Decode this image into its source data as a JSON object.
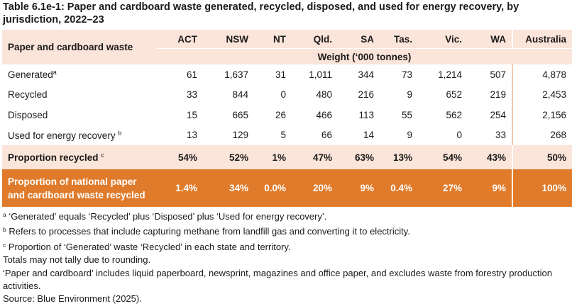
{
  "title": "Table 6.1e-1: Paper and cardboard waste generated, recycled, disposed, and used for energy recovery, by jurisdiction, 2022–23",
  "header": {
    "row_label": "Paper and cardboard waste",
    "columns": [
      "ACT",
      "NSW",
      "NT",
      "Qld.",
      "SA",
      "Tas.",
      "Vic.",
      "WA",
      "Australia"
    ],
    "units": "Weight (‘000 tonnes)"
  },
  "rows": [
    {
      "label": "Generated",
      "sup": "a",
      "values": [
        "61",
        "1,637",
        "31",
        "1,011",
        "344",
        "73",
        "1,214",
        "507",
        "4,878"
      ]
    },
    {
      "label": "Recycled",
      "sup": "",
      "values": [
        "33",
        "844",
        "0",
        "480",
        "216",
        "9",
        "652",
        "219",
        "2,453"
      ]
    },
    {
      "label": "Disposed",
      "sup": "",
      "values": [
        "15",
        "665",
        "26",
        "466",
        "113",
        "55",
        "562",
        "254",
        "2,156"
      ]
    },
    {
      "label": "Used for energy recovery",
      "sup": "b",
      "values": [
        "13",
        "129",
        "5",
        "66",
        "14",
        "9",
        "0",
        "33",
        "268"
      ]
    }
  ],
  "proportion_recycled": {
    "label": "Proportion recycled",
    "sup": "c",
    "values": [
      "54%",
      "52%",
      "1%",
      "47%",
      "63%",
      "13%",
      "54%",
      "43%",
      "50%"
    ]
  },
  "proportion_national": {
    "label": "Proportion of national paper and cardboard waste recycled",
    "values": [
      "1.4%",
      "34%",
      "0.0%",
      "20%",
      "9%",
      "0.4%",
      "27%",
      "9%",
      "100%"
    ]
  },
  "footnotes": [
    {
      "sup": "a",
      "text": "‘Generated’ equals ‘Recycled’ plus ‘Disposed’ plus ‘Used for energy recovery’."
    },
    {
      "sup": "b",
      "text": "Refers to processes that include capturing methane from landfill gas and converting it to electricity."
    },
    {
      "sup": "c",
      "text": "Proportion of ‘Generated’ waste ‘Recycled’ in each state and territory."
    },
    {
      "sup": "",
      "text": "Totals may not tally due to rounding."
    },
    {
      "sup": "",
      "text": "‘Paper and cardboard’ includes liquid paperboard, newsprint, magazines and office paper, and excludes waste from forestry production activities."
    },
    {
      "sup": "",
      "text": "Source: Blue Environment (2025)."
    }
  ],
  "colors": {
    "header_fill": "#fbe4d9",
    "accent_fill": "#e07b2b"
  }
}
